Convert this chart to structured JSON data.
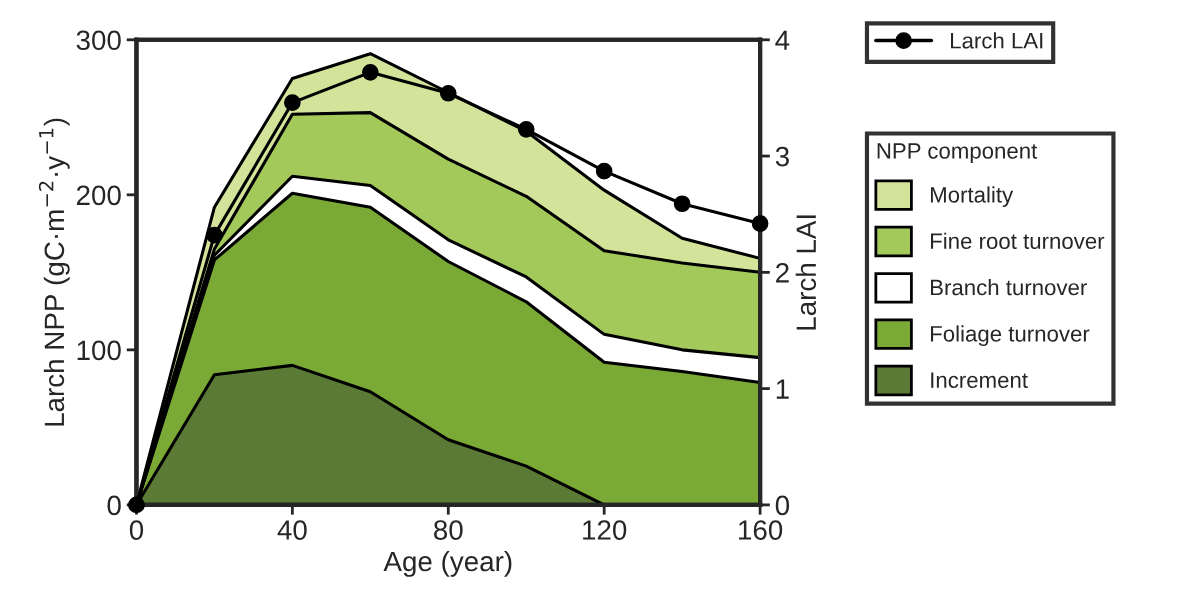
{
  "chart_data": {
    "type": "area",
    "stacked": true,
    "x": [
      0,
      20,
      40,
      60,
      80,
      100,
      120,
      140,
      160
    ],
    "xlabel": "Age (year)",
    "ylabel": "Larch NPP (gC·m$^{−2}$·y$^{−1}$)",
    "y2label": "Larch LAI",
    "legend_title": "NPP component",
    "series": [
      {
        "name": "Increment",
        "color": "#5a7a35",
        "values": [
          0,
          84,
          90,
          73,
          42,
          25,
          0,
          0,
          0
        ]
      },
      {
        "name": "Foliage turnover",
        "color": "#7aaa35",
        "values": [
          0,
          74,
          111,
          119,
          115,
          106,
          92,
          86,
          79
        ]
      },
      {
        "name": "Branch turnover",
        "color": "#ffffff",
        "values": [
          0,
          3,
          11,
          14,
          14,
          16,
          18,
          14,
          16
        ]
      },
      {
        "name": "Fine root turnover",
        "color": "#a3c95a",
        "values": [
          0,
          4,
          40,
          47,
          52,
          52,
          54,
          56,
          55
        ]
      },
      {
        "name": "Mortality",
        "color": "#d4e39a",
        "values": [
          0,
          27,
          23,
          38,
          43,
          42,
          39,
          16,
          9
        ]
      },
      {
        "name": "Larch LAI",
        "type": "line",
        "axis": "y2",
        "color": "#000000",
        "marker": "circle",
        "values": [
          0,
          2.32,
          3.46,
          3.72,
          3.54,
          3.23,
          2.87,
          2.59,
          2.42
        ]
      }
    ],
    "xlim": [
      0,
      160
    ],
    "xticks": [
      0,
      40,
      80,
      120,
      160
    ],
    "ylim": [
      0,
      300
    ],
    "yticks": [
      0,
      100,
      200,
      300
    ],
    "y2lim": [
      0,
      4
    ],
    "y2ticks": [
      0,
      1,
      2,
      3,
      4
    ],
    "grid": false,
    "legend": "right"
  }
}
